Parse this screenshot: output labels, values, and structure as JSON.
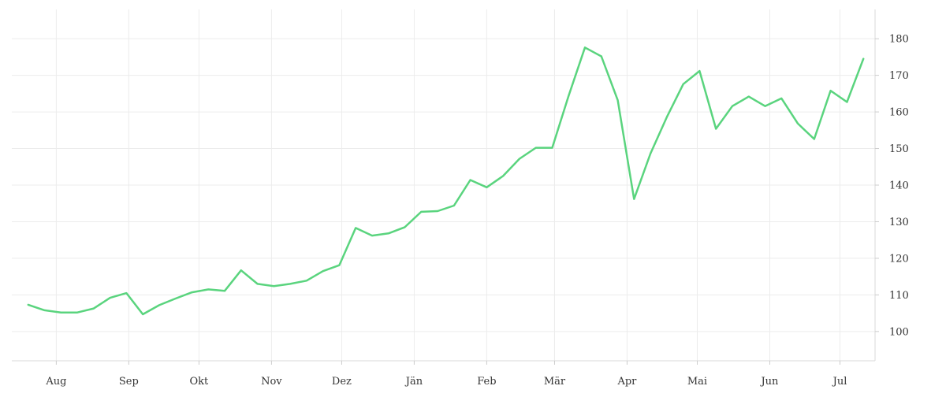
{
  "chart_data": {
    "type": "line",
    "title": "",
    "xlabel": "",
    "ylabel": "",
    "x_tick_labels": [
      "Aug",
      "Sep",
      "Okt",
      "Nov",
      "Dez",
      "Jän",
      "Feb",
      "Mär",
      "Apr",
      "Mai",
      "Jun",
      "Jul"
    ],
    "y_ticks": [
      100,
      110,
      120,
      130,
      140,
      150,
      160,
      170,
      180
    ],
    "ylim": [
      92,
      188
    ],
    "y_axis_position": "right",
    "grid": true,
    "legend": "none",
    "series": [
      {
        "color": "#5ad47e",
        "points": [
          [
            "2019-07-20",
            107.3
          ],
          [
            "2019-07-27",
            105.8
          ],
          [
            "2019-08-03",
            105.2
          ],
          [
            "2019-08-10",
            105.2
          ],
          [
            "2019-08-17",
            106.3
          ],
          [
            "2019-08-24",
            109.2
          ],
          [
            "2019-08-31",
            110.5
          ],
          [
            "2019-09-07",
            104.7
          ],
          [
            "2019-09-14",
            107.2
          ],
          [
            "2019-09-21",
            109.0
          ],
          [
            "2019-09-28",
            110.7
          ],
          [
            "2019-10-05",
            111.5
          ],
          [
            "2019-10-12",
            111.1
          ],
          [
            "2019-10-19",
            116.7
          ],
          [
            "2019-10-26",
            113.0
          ],
          [
            "2019-11-02",
            112.4
          ],
          [
            "2019-11-09",
            113.0
          ],
          [
            "2019-11-16",
            113.9
          ],
          [
            "2019-11-23",
            116.5
          ],
          [
            "2019-11-30",
            118.1
          ],
          [
            "2019-12-07",
            128.3
          ],
          [
            "2019-12-14",
            126.2
          ],
          [
            "2019-12-21",
            126.8
          ],
          [
            "2019-12-28",
            128.5
          ],
          [
            "2020-01-04",
            132.7
          ],
          [
            "2020-01-11",
            132.9
          ],
          [
            "2020-01-18",
            134.4
          ],
          [
            "2020-01-25",
            141.4
          ],
          [
            "2020-02-01",
            139.4
          ],
          [
            "2020-02-08",
            142.5
          ],
          [
            "2020-02-15",
            147.2
          ],
          [
            "2020-02-22",
            150.2
          ],
          [
            "2020-02-29",
            150.2
          ],
          [
            "2020-03-07",
            164.4
          ],
          [
            "2020-03-14",
            177.6
          ],
          [
            "2020-03-21",
            175.2
          ],
          [
            "2020-03-28",
            163.2
          ],
          [
            "2020-04-04",
            136.2
          ],
          [
            "2020-04-11",
            148.6
          ],
          [
            "2020-04-18",
            158.6
          ],
          [
            "2020-04-25",
            167.6
          ],
          [
            "2020-05-02",
            171.2
          ],
          [
            "2020-05-09",
            155.4
          ],
          [
            "2020-05-16",
            161.6
          ],
          [
            "2020-05-23",
            164.2
          ],
          [
            "2020-05-30",
            161.6
          ],
          [
            "2020-06-06",
            163.7
          ],
          [
            "2020-06-13",
            156.8
          ],
          [
            "2020-06-20",
            152.6
          ],
          [
            "2020-06-27",
            165.8
          ],
          [
            "2020-07-04",
            162.7
          ],
          [
            "2020-07-11",
            174.5
          ]
        ]
      }
    ]
  }
}
